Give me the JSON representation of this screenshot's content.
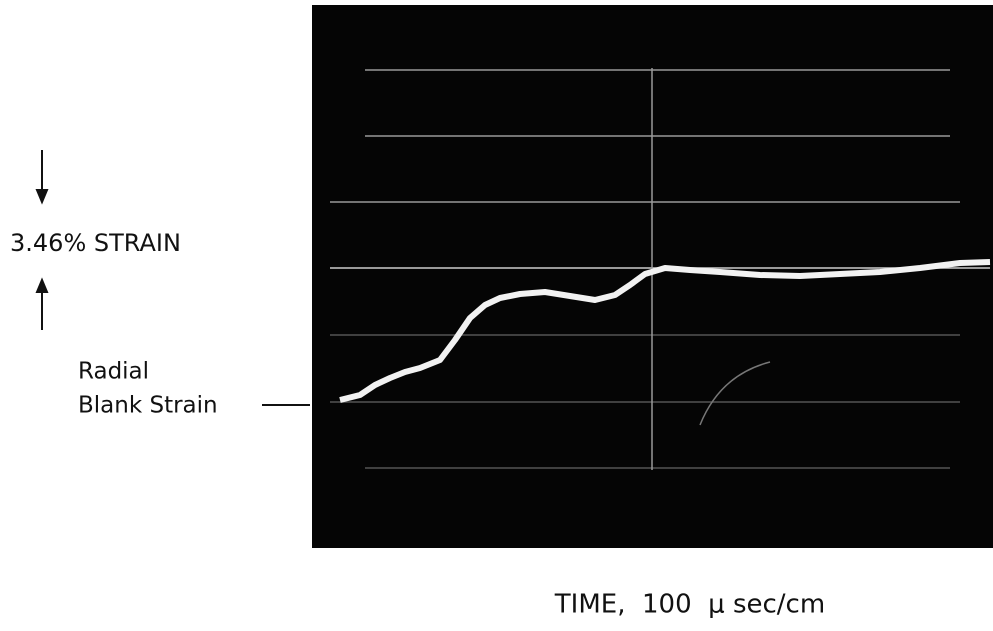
{
  "annotations": {
    "strain_scale": "3.46% STRAIN",
    "trace_label_line1": "Radial",
    "trace_label_line2": "Blank Strain"
  },
  "x_axis_label": "TIME,  100  μ sec/cm"
}
